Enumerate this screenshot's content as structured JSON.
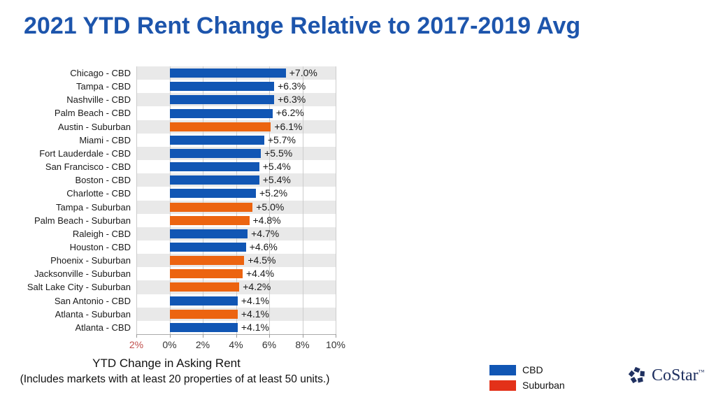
{
  "title": "2021 YTD Rent Change Relative to 2017-2019 Avg",
  "chart_data": {
    "type": "bar",
    "orientation": "horizontal",
    "categories": [
      "Chicago - CBD",
      "Tampa - CBD",
      "Nashville - CBD",
      "Palm Beach - CBD",
      "Austin - Suburban",
      "Miami - CBD",
      "Fort Lauderdale - CBD",
      "San Francisco - CBD",
      "Boston - CBD",
      "Charlotte - CBD",
      "Tampa - Suburban",
      "Palm Beach - Suburban",
      "Raleigh - CBD",
      "Houston - CBD",
      "Phoenix - Suburban",
      "Jacksonville - Suburban",
      "Salt Lake City - Suburban",
      "San Antonio - CBD",
      "Atlanta - Suburban",
      "Atlanta - CBD"
    ],
    "values": [
      7.0,
      6.3,
      6.3,
      6.2,
      6.1,
      5.7,
      5.5,
      5.4,
      5.4,
      5.2,
      5.0,
      4.8,
      4.7,
      4.6,
      4.5,
      4.4,
      4.2,
      4.1,
      4.1,
      4.1
    ],
    "value_labels": [
      "+7.0%",
      "+6.3%",
      "+6.3%",
      "+6.2%",
      "+6.1%",
      "+5.7%",
      "+5.5%",
      "+5.4%",
      "+5.4%",
      "+5.2%",
      "+5.0%",
      "+4.8%",
      "+4.7%",
      "+4.6%",
      "+4.5%",
      "+4.4%",
      "+4.2%",
      "+4.1%",
      "+4.1%",
      "+4.1%"
    ],
    "series_of": [
      "CBD",
      "CBD",
      "CBD",
      "CBD",
      "Suburban",
      "CBD",
      "CBD",
      "CBD",
      "CBD",
      "CBD",
      "Suburban",
      "Suburban",
      "CBD",
      "CBD",
      "Suburban",
      "Suburban",
      "Suburban",
      "CBD",
      "Suburban",
      "CBD"
    ],
    "series_colors": {
      "CBD": "#1156B4",
      "Suburban": "#EC6410"
    },
    "xlabel": "YTD Change in Asking Rent",
    "footnote": "(Includes markets with at least 20 properties of at least 50 units.)",
    "xlim": [
      -2,
      10
    ],
    "x_ticks": [
      {
        "value": -2,
        "label": "2%",
        "color": "#C0504D"
      },
      {
        "value": 0,
        "label": "0%",
        "color": "#333333"
      },
      {
        "value": 2,
        "label": "2%",
        "color": "#333333"
      },
      {
        "value": 4,
        "label": "4%",
        "color": "#333333"
      },
      {
        "value": 6,
        "label": "6%",
        "color": "#333333"
      },
      {
        "value": 8,
        "label": "8%",
        "color": "#333333"
      },
      {
        "value": 10,
        "label": "10%",
        "color": "#333333"
      }
    ],
    "grid": true,
    "stripe_colors": [
      "#E9E9E9",
      "#FFFFFF"
    ],
    "legend_position": "bottom-right",
    "legend": [
      {
        "label": "CBD",
        "color": "#1156B4"
      },
      {
        "label": "Suburban",
        "color": "#E33119"
      }
    ],
    "title_color": "#1D55AC"
  },
  "logo": {
    "text": "CoStar",
    "tm": "™"
  }
}
